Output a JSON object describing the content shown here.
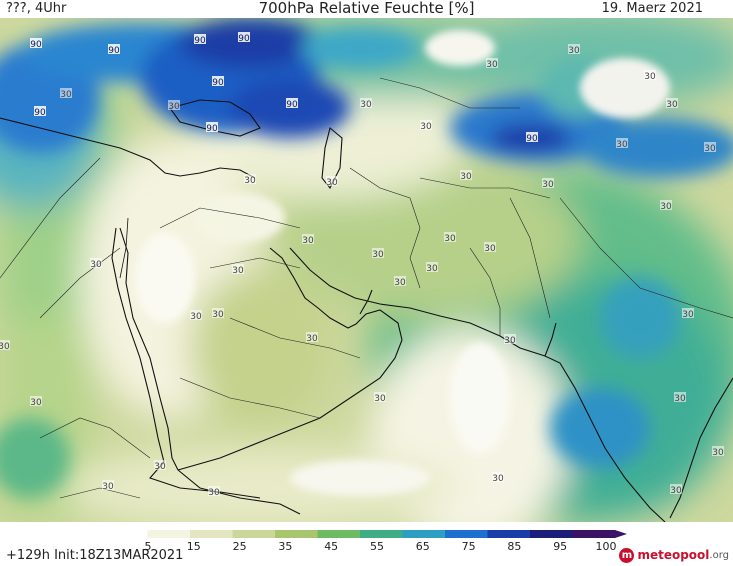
{
  "header": {
    "left": "???, 4Uhr",
    "title": "700hPa Relative Feuchte [%]",
    "date": "19. Maerz 2021"
  },
  "footer": {
    "init": "+129h Init:18Z13MAR2021"
  },
  "logo": {
    "name": "meteopool",
    "tld": ".org"
  },
  "colorbar": {
    "ticks": [
      "5",
      "15",
      "25",
      "35",
      "45",
      "55",
      "65",
      "75",
      "85",
      "95",
      "100"
    ],
    "colors": [
      "#ffffff",
      "#f4f4e2",
      "#e4e6c2",
      "#cbd79a",
      "#a7c66e",
      "#6dbb63",
      "#3fae86",
      "#2d9ec4",
      "#1e6fd0",
      "#1a3ea8",
      "#1c1f7a",
      "#3b1266"
    ]
  },
  "map": {
    "contour_labels": [
      "90",
      "90",
      "90",
      "90",
      "90",
      "90",
      "90",
      "90",
      "90",
      "30",
      "30",
      "30",
      "30",
      "30",
      "30",
      "30",
      "30",
      "30",
      "30",
      "30",
      "30",
      "30",
      "30",
      "30",
      "30",
      "30",
      "30",
      "30",
      "30",
      "30",
      "30",
      "30",
      "30",
      "30",
      "30",
      "30",
      "30",
      "30",
      "30",
      "30",
      "30",
      "30",
      "30",
      "30",
      "30",
      "30",
      "30"
    ]
  }
}
